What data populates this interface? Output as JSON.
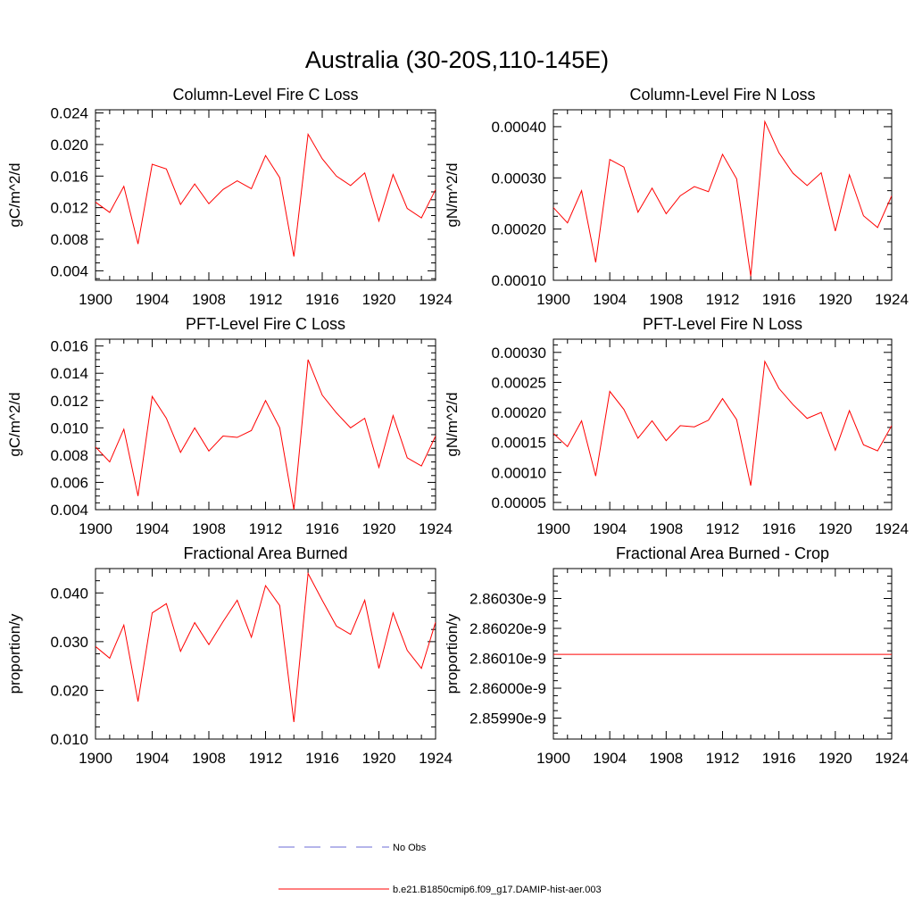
{
  "title": "Australia (30-20S,110-145E)",
  "legend": {
    "obs_label": "No Obs",
    "obs_color": "#6b6bd6",
    "model_label": "b.e21.B1850cmip6.f09_g17.DAMIP-hist-aer.003",
    "model_color": "#ff0000"
  },
  "chart_data": [
    {
      "type": "line",
      "title": "Column-Level Fire C Loss",
      "ylabel": "gC/m^2/d",
      "xlim": [
        1900,
        1924
      ],
      "ylim": [
        0.0028,
        0.0244
      ],
      "x_ticks": [
        "1900",
        "1904",
        "1908",
        "1912",
        "1916",
        "1920",
        "1924"
      ],
      "y_ticks": [
        "0.004",
        "0.008",
        "0.012",
        "0.016",
        "0.020",
        "0.024"
      ],
      "series": [
        {
          "x": [
            1900,
            1901,
            1902,
            1903,
            1904,
            1905,
            1906,
            1907,
            1908,
            1909,
            1910,
            1911,
            1912,
            1913,
            1914,
            1915,
            1916,
            1917,
            1918,
            1919,
            1920,
            1921,
            1922,
            1923,
            1924
          ],
          "values": [
            0.0127,
            0.0114,
            0.0147,
            0.0074,
            0.0175,
            0.0169,
            0.0124,
            0.015,
            0.0125,
            0.0143,
            0.0154,
            0.0144,
            0.0186,
            0.0158,
            0.0058,
            0.0213,
            0.0182,
            0.016,
            0.0148,
            0.0164,
            0.0103,
            0.0162,
            0.0119,
            0.0107,
            0.0143
          ],
          "color": "#ff0000"
        }
      ]
    },
    {
      "type": "line",
      "title": "Column-Level Fire N Loss",
      "ylabel": "gN/m^2/d",
      "xlim": [
        1900,
        1924
      ],
      "ylim": [
        0.0001,
        0.000433
      ],
      "x_ticks": [
        "1900",
        "1904",
        "1908",
        "1912",
        "1916",
        "1920",
        "1924"
      ],
      "y_ticks": [
        "0.00010",
        "0.00020",
        "0.00030",
        "0.00040"
      ],
      "series": [
        {
          "x": [
            1900,
            1901,
            1902,
            1903,
            1904,
            1905,
            1906,
            1907,
            1908,
            1909,
            1910,
            1911,
            1912,
            1913,
            1914,
            1915,
            1916,
            1917,
            1918,
            1919,
            1920,
            1921,
            1922,
            1923,
            1924
          ],
          "values": [
            0.000242,
            0.000212,
            0.000275,
            0.000135,
            0.000336,
            0.000321,
            0.000233,
            0.00028,
            0.00023,
            0.000265,
            0.000283,
            0.000273,
            0.000346,
            0.000298,
            0.000108,
            0.00041,
            0.000349,
            0.000309,
            0.000285,
            0.00031,
            0.000196,
            0.000306,
            0.000226,
            0.000203,
            0.000265
          ],
          "color": "#ff0000"
        }
      ]
    },
    {
      "type": "line",
      "title": "PFT-Level Fire C Loss",
      "ylabel": "gC/m^2/d",
      "xlim": [
        1900,
        1924
      ],
      "ylim": [
        0.004,
        0.0165
      ],
      "x_ticks": [
        "1900",
        "1904",
        "1908",
        "1912",
        "1916",
        "1920",
        "1924"
      ],
      "y_ticks": [
        "0.004",
        "0.006",
        "0.008",
        "0.010",
        "0.012",
        "0.014",
        "0.016"
      ],
      "series": [
        {
          "x": [
            1900,
            1901,
            1902,
            1903,
            1904,
            1905,
            1906,
            1907,
            1908,
            1909,
            1910,
            1911,
            1912,
            1913,
            1914,
            1915,
            1916,
            1917,
            1918,
            1919,
            1920,
            1921,
            1922,
            1923,
            1924
          ],
          "values": [
            0.0086,
            0.0075,
            0.0099,
            0.005,
            0.0123,
            0.0107,
            0.0082,
            0.01,
            0.0083,
            0.0094,
            0.0093,
            0.0098,
            0.012,
            0.01,
            0.004,
            0.015,
            0.0124,
            0.0111,
            0.01,
            0.0107,
            0.0071,
            0.0109,
            0.0078,
            0.0072,
            0.0094
          ],
          "color": "#ff0000"
        }
      ]
    },
    {
      "type": "line",
      "title": "PFT-Level Fire N Loss",
      "ylabel": "gN/m^2/d",
      "xlim": [
        1900,
        1924
      ],
      "ylim": [
        3.8e-05,
        0.000322
      ],
      "x_ticks": [
        "1900",
        "1904",
        "1908",
        "1912",
        "1916",
        "1920",
        "1924"
      ],
      "y_ticks": [
        "0.00005",
        "0.00010",
        "0.00015",
        "0.00020",
        "0.00025",
        "0.00030"
      ],
      "series": [
        {
          "x": [
            1900,
            1901,
            1902,
            1903,
            1904,
            1905,
            1906,
            1907,
            1908,
            1909,
            1910,
            1911,
            1912,
            1913,
            1914,
            1915,
            1916,
            1917,
            1918,
            1919,
            1920,
            1921,
            1922,
            1923,
            1924
          ],
          "values": [
            0.000165,
            0.000143,
            0.000186,
            9.4e-05,
            0.000235,
            0.000205,
            0.000157,
            0.000186,
            0.000153,
            0.000178,
            0.000176,
            0.000187,
            0.000223,
            0.000188,
            7.8e-05,
            0.000285,
            0.00024,
            0.000213,
            0.00019,
            0.0002,
            0.000137,
            0.000203,
            0.000146,
            0.000136,
            0.000178
          ],
          "color": "#ff0000"
        }
      ]
    },
    {
      "type": "line",
      "title": "Fractional Area Burned",
      "ylabel": "proportion/y",
      "xlim": [
        1900,
        1924
      ],
      "ylim": [
        0.01,
        0.045
      ],
      "x_ticks": [
        "1900",
        "1904",
        "1908",
        "1912",
        "1916",
        "1920",
        "1924"
      ],
      "y_ticks": [
        "0.010",
        "0.020",
        "0.030",
        "0.040"
      ],
      "series": [
        {
          "x": [
            1900,
            1901,
            1902,
            1903,
            1904,
            1905,
            1906,
            1907,
            1908,
            1909,
            1910,
            1911,
            1912,
            1913,
            1914,
            1915,
            1916,
            1917,
            1918,
            1919,
            1920,
            1921,
            1922,
            1923,
            1924
          ],
          "values": [
            0.029,
            0.0266,
            0.0334,
            0.0177,
            0.0359,
            0.0378,
            0.028,
            0.0339,
            0.0294,
            0.0341,
            0.0385,
            0.0309,
            0.0415,
            0.0374,
            0.0135,
            0.044,
            0.0385,
            0.0332,
            0.0315,
            0.0385,
            0.0245,
            0.0359,
            0.0282,
            0.0245,
            0.034
          ],
          "color": "#ff0000"
        }
      ]
    },
    {
      "type": "line",
      "title": "Fractional Area Burned - Crop",
      "ylabel": "proportion/y",
      "xlim": [
        1900,
        1924
      ],
      "ylim": [
        2.85983e-09,
        2.8604e-09
      ],
      "x_ticks": [
        "1900",
        "1904",
        "1908",
        "1912",
        "1916",
        "1920",
        "1924"
      ],
      "y_ticks": [
        "2.85990e-9",
        "2.86000e-9",
        "2.86010e-9",
        "2.86020e-9",
        "2.86030e-9"
      ],
      "series": [
        {
          "x": [
            1900,
            1901,
            1902,
            1903,
            1904,
            1905,
            1906,
            1907,
            1908,
            1909,
            1910,
            1911,
            1912,
            1913,
            1914,
            1915,
            1916,
            1917,
            1918,
            1919,
            1920,
            1921,
            1922,
            1923,
            1924
          ],
          "values": [
            2.860113e-09,
            2.860113e-09,
            2.860113e-09,
            2.860113e-09,
            2.860113e-09,
            2.860113e-09,
            2.860113e-09,
            2.860113e-09,
            2.860113e-09,
            2.860113e-09,
            2.860113e-09,
            2.860113e-09,
            2.860113e-09,
            2.860113e-09,
            2.860113e-09,
            2.860113e-09,
            2.860113e-09,
            2.860113e-09,
            2.860113e-09,
            2.860113e-09,
            2.860113e-09,
            2.860113e-09,
            2.860113e-09,
            2.860113e-09,
            2.860113e-09
          ],
          "color": "#ff0000"
        }
      ]
    }
  ]
}
